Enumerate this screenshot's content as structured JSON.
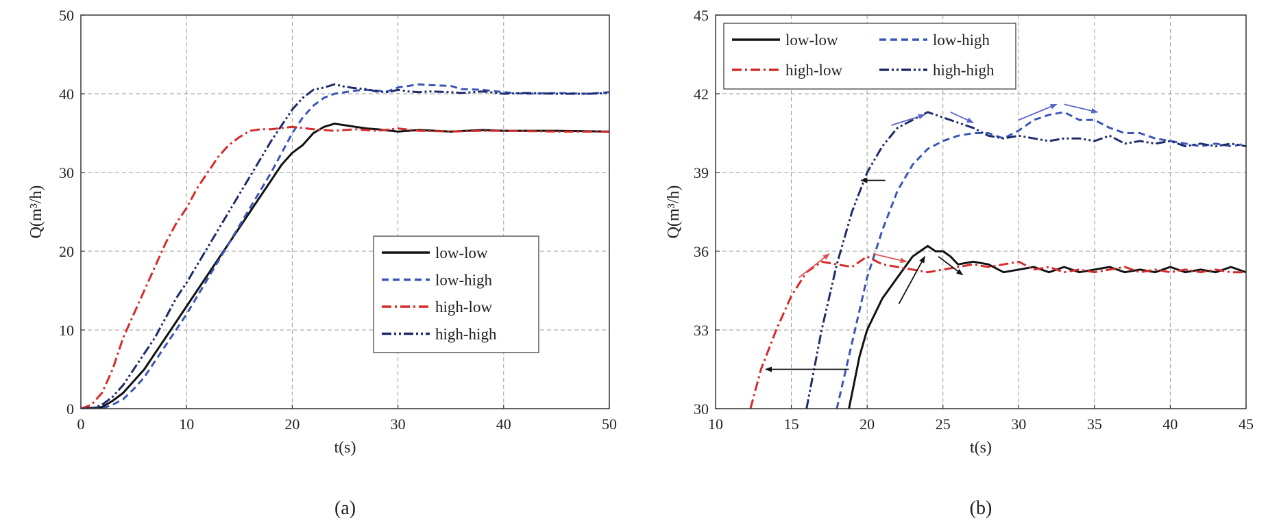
{
  "colors": {
    "low_low": "#111111",
    "low_high": "#3a55b8",
    "high_low": "#d62a2a",
    "high_high": "#1f2a6b",
    "grid": "#9a9a9a",
    "arrow_black": "#111111",
    "arrow_red": "#d9534f",
    "arrow_blue": "#5a63c8"
  },
  "chart_data": [
    {
      "type": "line",
      "panel_label": "(a)",
      "title": "",
      "xlabel": "t(s)",
      "ylabel": "Q(m³/h)",
      "xlim": [
        0,
        50
      ],
      "ylim": [
        0,
        50
      ],
      "xticks": [
        0,
        10,
        20,
        30,
        40,
        50
      ],
      "yticks": [
        0,
        10,
        20,
        30,
        40,
        50
      ],
      "grid": true,
      "legend_position": "center-right",
      "series": [
        {
          "name": "low-low",
          "key": "low_low",
          "dash": "solid",
          "x": [
            0,
            2,
            3,
            4,
            5,
            6,
            7,
            8,
            9,
            10,
            12,
            14,
            16,
            18,
            19,
            20,
            21,
            22,
            23,
            24,
            25,
            26,
            27,
            28,
            30,
            32,
            35,
            38,
            40,
            45,
            50
          ],
          "y": [
            0,
            0.2,
            1,
            2,
            3.5,
            5,
            7,
            9,
            11,
            13,
            17,
            21,
            25,
            29,
            31,
            32.5,
            33.5,
            35,
            35.8,
            36.2,
            36.0,
            35.8,
            35.6,
            35.5,
            35.2,
            35.4,
            35.2,
            35.4,
            35.3,
            35.3,
            35.2
          ]
        },
        {
          "name": "low-high",
          "key": "low_high",
          "dash": "dashed",
          "x": [
            0,
            2,
            3,
            4,
            5,
            6,
            7,
            8,
            9,
            10,
            12,
            14,
            16,
            18,
            19,
            20,
            21,
            22,
            23,
            24,
            25,
            26,
            27,
            28,
            29,
            30,
            31,
            32,
            33,
            35,
            36,
            38,
            40,
            42,
            45,
            48,
            50
          ],
          "y": [
            0,
            0,
            0.5,
            1.2,
            2.5,
            4,
            6,
            8,
            10,
            12,
            16.5,
            21,
            25.5,
            30,
            32.5,
            35,
            37,
            38.5,
            39.5,
            40,
            40.2,
            40.4,
            40.5,
            40.4,
            40.3,
            40.8,
            41.0,
            41.2,
            41.1,
            41.0,
            40.6,
            40.5,
            40.2,
            40.0,
            40.1,
            40.0,
            40.2
          ]
        },
        {
          "name": "high-low",
          "key": "high_low",
          "dash": "dashdot",
          "x": [
            0,
            1,
            2,
            3,
            4,
            5,
            6,
            7,
            8,
            9,
            10,
            11,
            12,
            13,
            14,
            15,
            16,
            17,
            18,
            20,
            22,
            24,
            26,
            28,
            30,
            32,
            35,
            38,
            40,
            45,
            50
          ],
          "y": [
            0,
            0.5,
            2,
            5,
            9,
            12,
            15,
            18,
            21,
            23.5,
            25.5,
            28,
            30,
            32,
            33.5,
            34.5,
            35.3,
            35.5,
            35.5,
            35.8,
            35.5,
            35.3,
            35.5,
            35.3,
            35.6,
            35.3,
            35.2,
            35.3,
            35.3,
            35.2,
            35.2
          ]
        },
        {
          "name": "high-high",
          "key": "high_high",
          "dash": "dashdotdot",
          "x": [
            0,
            1,
            2,
            3,
            4,
            5,
            6,
            7,
            8,
            9,
            10,
            12,
            14,
            16,
            18,
            19,
            20,
            21,
            22,
            23,
            24,
            25,
            26,
            27,
            28,
            29,
            30,
            31,
            32,
            33,
            35,
            36,
            38,
            40,
            42,
            45,
            48,
            50
          ],
          "y": [
            0,
            0,
            0.5,
            1.5,
            3,
            5,
            7,
            9,
            11.5,
            14,
            16,
            20.5,
            25,
            29.5,
            34,
            36,
            38,
            39.5,
            40.5,
            40.8,
            41.2,
            40.9,
            40.7,
            40.6,
            40.3,
            40.2,
            40.5,
            40.3,
            40.2,
            40.3,
            40.2,
            40.1,
            40.3,
            40.0,
            40.1,
            40.0,
            40.0,
            40.1
          ]
        }
      ]
    },
    {
      "type": "line",
      "panel_label": "(b)",
      "title": "",
      "xlabel": "t(s)",
      "ylabel": "Q(m³/h)",
      "xlim": [
        10,
        45
      ],
      "ylim": [
        30,
        45
      ],
      "xticks": [
        10,
        15,
        20,
        25,
        30,
        35,
        40,
        45
      ],
      "yticks": [
        30,
        33,
        36,
        39,
        42,
        45
      ],
      "grid": true,
      "legend_position": "top-left",
      "series": [
        {
          "name": "low-low",
          "key": "low_low",
          "dash": "solid",
          "x": [
            18.8,
            19.5,
            20,
            21,
            22,
            23,
            23.5,
            24,
            24.5,
            25,
            25.5,
            26,
            27,
            28,
            29,
            30,
            31,
            32,
            33,
            34,
            35,
            36,
            37,
            38,
            39,
            40,
            41,
            42,
            43,
            44,
            45
          ],
          "y": [
            30,
            32,
            33,
            34.2,
            35.0,
            35.8,
            36.0,
            36.2,
            36.0,
            36.0,
            35.8,
            35.5,
            35.6,
            35.5,
            35.2,
            35.3,
            35.4,
            35.2,
            35.4,
            35.2,
            35.3,
            35.4,
            35.2,
            35.3,
            35.2,
            35.4,
            35.2,
            35.3,
            35.2,
            35.4,
            35.2
          ]
        },
        {
          "name": "low-high",
          "key": "low_high",
          "dash": "dashed",
          "x": [
            18,
            19,
            20,
            21,
            22,
            23,
            24,
            25,
            26,
            27,
            28,
            29,
            30,
            31,
            32,
            33,
            34,
            35,
            36,
            37,
            38,
            39,
            40,
            41,
            42,
            43,
            44,
            45
          ],
          "y": [
            30,
            32.5,
            35,
            36.8,
            38.3,
            39.3,
            39.9,
            40.2,
            40.4,
            40.5,
            40.5,
            40.3,
            40.6,
            41.0,
            41.2,
            41.3,
            41.0,
            41.0,
            40.7,
            40.5,
            40.5,
            40.3,
            40.2,
            40.1,
            40.0,
            40.1,
            40.0,
            40.1
          ]
        },
        {
          "name": "high-low",
          "key": "high_low",
          "dash": "dashdot",
          "x": [
            12.3,
            13,
            14,
            15,
            16,
            17,
            18,
            19,
            20,
            21,
            22,
            23,
            24,
            25,
            26,
            27,
            28,
            29,
            30,
            31,
            32,
            33,
            34,
            35,
            36,
            37,
            38,
            39,
            40,
            41,
            42,
            43,
            44,
            45
          ],
          "y": [
            30,
            31.5,
            33,
            34.3,
            35.2,
            35.6,
            35.5,
            35.4,
            35.8,
            35.5,
            35.4,
            35.3,
            35.2,
            35.3,
            35.4,
            35.5,
            35.4,
            35.5,
            35.6,
            35.3,
            35.4,
            35.2,
            35.3,
            35.2,
            35.3,
            35.4,
            35.2,
            35.3,
            35.2,
            35.3,
            35.2,
            35.3,
            35.2,
            35.2
          ]
        },
        {
          "name": "high-high",
          "key": "high_high",
          "dash": "dashdotdot",
          "x": [
            16,
            17,
            18,
            19,
            20,
            21,
            22,
            23,
            24,
            25,
            26,
            27,
            28,
            29,
            30,
            31,
            32,
            33,
            34,
            35,
            36,
            37,
            38,
            39,
            40,
            41,
            42,
            43,
            44,
            45
          ],
          "y": [
            30,
            33,
            35.5,
            37.5,
            39,
            40,
            40.7,
            41.0,
            41.3,
            41.1,
            40.9,
            40.7,
            40.4,
            40.3,
            40.4,
            40.3,
            40.2,
            40.3,
            40.3,
            40.2,
            40.4,
            40.1,
            40.2,
            40.1,
            40.2,
            40.0,
            40.1,
            40.0,
            40.1,
            40.0
          ]
        }
      ],
      "annotations": [
        {
          "kind": "arrow",
          "color_key": "arrow_black",
          "from": [
            18.8,
            31.5
          ],
          "to": [
            13.3,
            31.5
          ]
        },
        {
          "kind": "arrow",
          "color_key": "arrow_black",
          "from": [
            21.2,
            38.7
          ],
          "to": [
            19.6,
            38.7
          ]
        },
        {
          "kind": "arrow",
          "color_key": "arrow_red",
          "from": [
            15.5,
            35.0
          ],
          "to": [
            17.5,
            35.9
          ]
        },
        {
          "kind": "arrow",
          "color_key": "arrow_red",
          "from": [
            20.4,
            35.9
          ],
          "to": [
            22.6,
            35.6
          ]
        },
        {
          "kind": "arrow",
          "color_key": "arrow_black",
          "from": [
            22.1,
            34.0
          ],
          "to": [
            23.8,
            35.8
          ]
        },
        {
          "kind": "arrow",
          "color_key": "arrow_black",
          "from": [
            24.7,
            35.8
          ],
          "to": [
            26.3,
            35.1
          ]
        },
        {
          "kind": "arrow",
          "color_key": "arrow_blue",
          "from": [
            21.6,
            40.8
          ],
          "to": [
            23.8,
            41.2
          ]
        },
        {
          "kind": "arrow",
          "color_key": "arrow_blue",
          "from": [
            25.5,
            41.3
          ],
          "to": [
            27.0,
            40.9
          ]
        },
        {
          "kind": "arrow",
          "color_key": "arrow_blue",
          "from": [
            30.0,
            41.0
          ],
          "to": [
            32.5,
            41.6
          ]
        },
        {
          "kind": "arrow",
          "color_key": "arrow_blue",
          "from": [
            33.0,
            41.6
          ],
          "to": [
            35.2,
            41.3
          ]
        }
      ]
    }
  ]
}
